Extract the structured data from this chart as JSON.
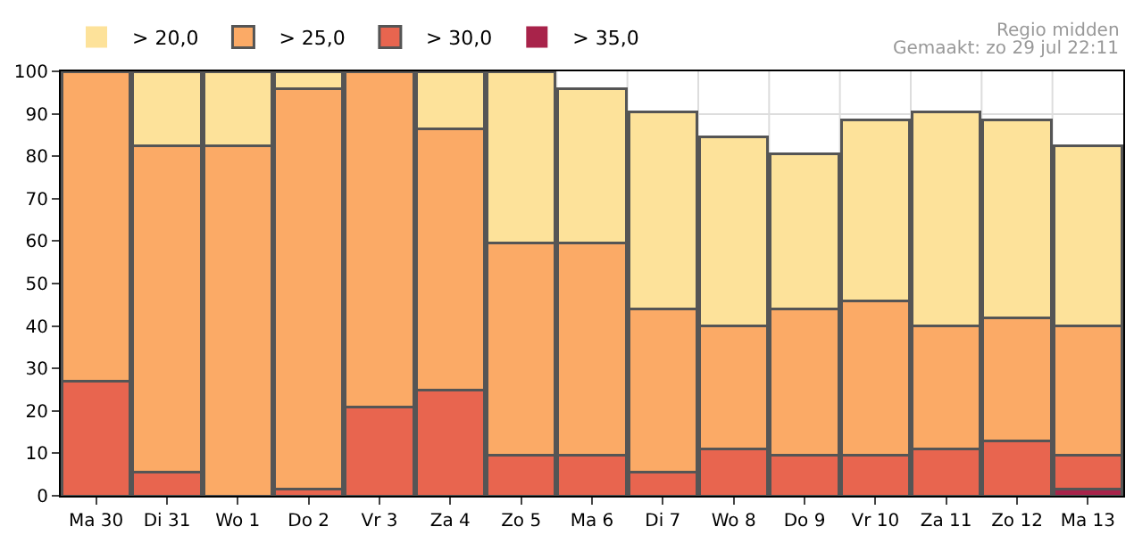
{
  "chart_data": {
    "type": "bar",
    "stacked": true,
    "categories": [
      "Ma 30",
      "Di 31",
      "Wo 1",
      "Do 2",
      "Vr 3",
      "Za 4",
      "Zo 5",
      "Ma 6",
      "Di 7",
      "Wo 8",
      "Do 9",
      "Vr 10",
      "Za 11",
      "Zo 12",
      "Ma 13"
    ],
    "series": [
      {
        "name": "> 35,0",
        "color": "#a8234a",
        "values": [
          0,
          0,
          0,
          0,
          0,
          0,
          0,
          0,
          0,
          0,
          0,
          0,
          0,
          0,
          1.5
        ]
      },
      {
        "name": "> 30,0",
        "color": "#e8654f",
        "values": [
          27,
          5.5,
          0,
          1.5,
          21,
          25,
          9.5,
          9.5,
          5.5,
          11,
          9.5,
          9.5,
          11,
          13,
          8
        ]
      },
      {
        "name": "> 25,0",
        "color": "#fbaa66",
        "values": [
          73,
          77,
          82.5,
          94.5,
          79,
          61.5,
          50,
          50,
          38.5,
          29,
          34.5,
          36.5,
          29,
          29,
          30.5
        ]
      },
      {
        "name": "> 20,0",
        "color": "#fde29a",
        "values": [
          0,
          17.5,
          17.5,
          4,
          0,
          13.5,
          40.5,
          36.5,
          46.5,
          44.5,
          36.5,
          42.5,
          50.5,
          46.5,
          42.5
        ]
      }
    ],
    "ylim": [
      0,
      100
    ],
    "yticks": [
      0,
      10,
      20,
      30,
      40,
      50,
      60,
      70,
      80,
      90,
      100
    ],
    "grid": true,
    "legend": "top left",
    "annotations": [
      "Regio midden",
      "Gemaakt: zo 29 jul 22:11"
    ]
  }
}
